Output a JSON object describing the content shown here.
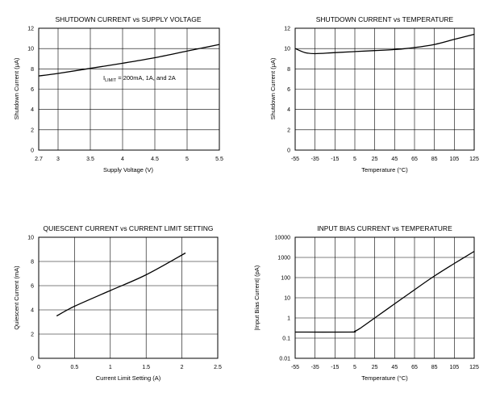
{
  "chart_data": [
    {
      "type": "line",
      "title": "SHUTDOWN CURRENT vs SUPPLY VOLTAGE",
      "xlabel": "Supply Voltage (V)",
      "ylabel": "Shutdown Current (μA)",
      "xlim": [
        2.7,
        5.5
      ],
      "ylim": [
        0,
        12
      ],
      "xscale": "linear",
      "yscale": "linear",
      "xticks": [
        2.7,
        3,
        3.5,
        4,
        4.5,
        5,
        5.5
      ],
      "xtick_labels": [
        "2.7",
        "3",
        "3.5",
        "4",
        "4.5",
        "5",
        "5.5"
      ],
      "yticks": [
        0,
        2,
        4,
        6,
        8,
        10,
        12
      ],
      "ytick_labels": [
        "0",
        "2",
        "4",
        "6",
        "8",
        "10",
        "12"
      ],
      "grid": true,
      "annotation": {
        "prefix": "I",
        "sub": "LIMIT",
        "text": " = 200mA, 1A, and 2A"
      },
      "series": [
        {
          "name": "ILIMIT = 200mA, 1A, and 2A",
          "x": [
            2.7,
            3.0,
            3.5,
            4.0,
            4.5,
            5.0,
            5.5
          ],
          "y": [
            7.3,
            7.55,
            8.05,
            8.55,
            9.1,
            9.75,
            10.4
          ]
        }
      ]
    },
    {
      "type": "line",
      "title": "SHUTDOWN CURRENT vs TEMPERATURE",
      "xlabel": "Temperature (°C)",
      "ylabel": "Shutdown Current (μA)",
      "xlim": [
        -55,
        125
      ],
      "ylim": [
        0,
        12
      ],
      "xscale": "linear",
      "yscale": "linear",
      "xticks": [
        -55,
        -35,
        -15,
        5,
        25,
        45,
        65,
        85,
        105,
        125
      ],
      "xtick_labels": [
        "-55",
        "-35",
        "-15",
        "5",
        "25",
        "45",
        "65",
        "85",
        "105",
        "125"
      ],
      "yticks": [
        0,
        2,
        4,
        6,
        8,
        10,
        12
      ],
      "ytick_labels": [
        "0",
        "2",
        "4",
        "6",
        "8",
        "10",
        "12"
      ],
      "grid": true,
      "series": [
        {
          "name": "Shutdown Current",
          "x": [
            -55,
            -45,
            -35,
            -15,
            5,
            25,
            45,
            65,
            85,
            105,
            125
          ],
          "y": [
            10.0,
            9.6,
            9.5,
            9.6,
            9.7,
            9.8,
            9.9,
            10.1,
            10.4,
            10.9,
            11.4
          ]
        }
      ]
    },
    {
      "type": "line",
      "title": "QUIESCENT CURRENT vs CURRENT LIMIT SETTING",
      "xlabel": "Current Limit Setting (A)",
      "ylabel": "Quiescent Current (mA)",
      "xlim": [
        0,
        2.5
      ],
      "ylim": [
        0,
        10
      ],
      "xscale": "linear",
      "yscale": "linear",
      "xticks": [
        0,
        0.5,
        1,
        1.5,
        2,
        2.5
      ],
      "xtick_labels": [
        "0",
        "0.5",
        "1",
        "1.5",
        "2",
        "2.5"
      ],
      "yticks": [
        0,
        2,
        4,
        6,
        8,
        10
      ],
      "ytick_labels": [
        "0",
        "2",
        "4",
        "6",
        "8",
        "10"
      ],
      "grid": true,
      "series": [
        {
          "name": "Quiescent Current",
          "x": [
            0.25,
            0.5,
            1.0,
            1.5,
            2.05
          ],
          "y": [
            3.5,
            4.3,
            5.6,
            6.9,
            8.7
          ]
        }
      ]
    },
    {
      "type": "line",
      "title": "INPUT BIAS CURRENT vs TEMPERATURE",
      "xlabel": "Temperature (°C)",
      "ylabel": "|Input Bias Current| (pA)",
      "xlim": [
        -55,
        125
      ],
      "ylim": [
        0.01,
        10000
      ],
      "xscale": "linear",
      "yscale": "log",
      "xticks": [
        -55,
        -35,
        -15,
        5,
        25,
        45,
        65,
        85,
        105,
        125
      ],
      "xtick_labels": [
        "-55",
        "-35",
        "-15",
        "5",
        "25",
        "45",
        "65",
        "85",
        "105",
        "125"
      ],
      "yticks": [
        0.01,
        0.1,
        1,
        10,
        100,
        1000,
        10000
      ],
      "ytick_labels": [
        "0.01",
        "0.1",
        "1",
        "10",
        "100",
        "1000",
        "10000"
      ],
      "grid": true,
      "series": [
        {
          "name": "Input Bias Current",
          "x": [
            -55,
            0,
            5,
            10,
            25,
            45,
            65,
            85,
            105,
            125
          ],
          "y": [
            0.2,
            0.2,
            0.22,
            0.3,
            1.0,
            5.0,
            25,
            120,
            500,
            2000
          ]
        }
      ]
    }
  ]
}
